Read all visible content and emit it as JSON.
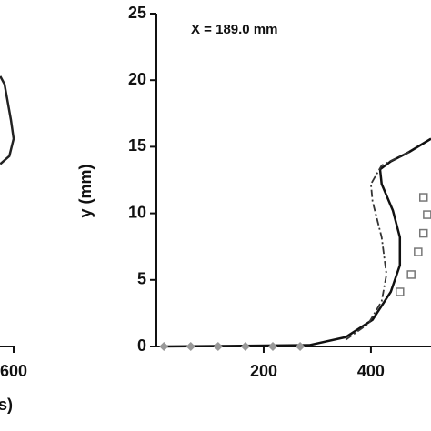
{
  "chart_data": [
    {
      "type": "line",
      "xlim": [
        0,
        600
      ],
      "ylim": [
        0,
        25
      ],
      "xticks": [
        600
      ],
      "xlabel": "s)",
      "series": [
        {
          "color": "#222222",
          "style": "solid",
          "x": [
            575,
            583,
            595,
            600,
            592,
            575
          ],
          "values": [
            20.3,
            19.7,
            17,
            15.6,
            14.3,
            13.7
          ]
        }
      ]
    },
    {
      "type": "line",
      "annotation": "X = 189.0 mm",
      "ylabel": "y (mm)",
      "xlim": [
        0,
        512
      ],
      "ylim": [
        0,
        25
      ],
      "xticks": [
        200,
        400
      ],
      "yticks": [
        0,
        5,
        10,
        15,
        20,
        25
      ],
      "series": [
        {
          "color": "#111111",
          "style": "solid",
          "x": [
            14,
            285,
            353,
            403,
            437,
            454,
            454,
            441,
            420,
            417,
            437,
            471,
            512
          ],
          "values": [
            0,
            0.1,
            0.7,
            2.0,
            4.1,
            6.1,
            8.2,
            10.2,
            12.2,
            13.3,
            13.9,
            14.6,
            15.6
          ]
        },
        {
          "color": "#333333",
          "style": "dashdot",
          "x": [
            353,
            395,
            420,
            429,
            420,
            403,
            400,
            420,
            471
          ],
          "values": [
            0.5,
            1.7,
            3.4,
            5.4,
            8.2,
            10.9,
            12.2,
            13.6,
            14.6
          ]
        },
        {
          "color": "#777777",
          "style": "squares",
          "x": [
            454,
            475,
            488,
            498,
            505,
            498
          ],
          "values": [
            4.1,
            5.4,
            7.1,
            8.5,
            9.9,
            11.2
          ]
        },
        {
          "color": "#999999",
          "style": "diamonds",
          "x": [
            14,
            64,
            115,
            166,
            217,
            268
          ],
          "values": [
            0,
            0,
            0,
            0,
            0,
            0
          ]
        }
      ]
    }
  ]
}
